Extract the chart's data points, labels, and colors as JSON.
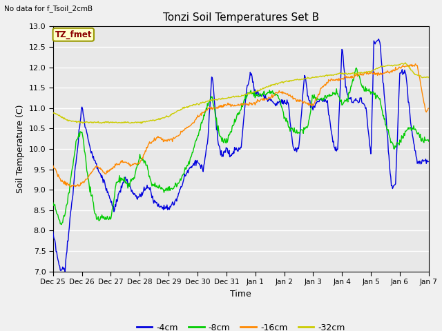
{
  "title": "Tonzi Soil Temperatures Set B",
  "xlabel": "Time",
  "ylabel": "Soil Temperature (C)",
  "top_left_note": "No data for f_Tsoil_2cmB",
  "annotation_label": "TZ_fmet",
  "ylim": [
    7.0,
    13.0
  ],
  "yticks": [
    7.0,
    7.5,
    8.0,
    8.5,
    9.0,
    9.5,
    10.0,
    10.5,
    11.0,
    11.5,
    12.0,
    12.5,
    13.0
  ],
  "colors": {
    "4cm": "#0000dd",
    "8cm": "#00cc00",
    "16cm": "#ff8800",
    "32cm": "#cccc00"
  },
  "legend": [
    "-4cm",
    "-8cm",
    "-16cm",
    "-32cm"
  ],
  "bg_color": "#e8e8e8",
  "fig_bg": "#f0f0f0",
  "xtick_labels": [
    "Dec 25",
    "Dec 26",
    "Dec 27",
    "Dec 28",
    "Dec 29",
    "Dec 30",
    "Dec 31",
    "Jan 1",
    "Jan 2",
    "Jan 3",
    "Jan 4",
    "Jan 5",
    "Jan 6",
    "Jan 7"
  ],
  "key_x4": [
    0,
    0.25,
    0.42,
    1.0,
    1.1,
    1.3,
    1.5,
    1.7,
    1.9,
    2.1,
    2.3,
    2.5,
    2.7,
    2.85,
    3.0,
    3.15,
    3.3,
    3.5,
    3.7,
    3.85,
    4.0,
    4.2,
    4.4,
    4.6,
    4.8,
    5.0,
    5.2,
    5.35,
    5.5,
    5.7,
    5.85,
    6.0,
    6.15,
    6.3,
    6.5,
    6.7,
    6.85,
    7.0,
    7.1,
    7.3,
    7.5,
    7.7,
    7.85,
    8.0,
    8.15,
    8.3,
    8.5,
    8.7,
    8.85,
    9.0,
    9.2,
    9.4,
    9.5,
    9.7,
    9.85,
    10.0,
    10.15,
    10.3,
    10.5,
    10.7,
    10.85,
    11.0,
    11.1,
    11.3,
    11.5,
    11.7,
    11.85,
    12.0,
    12.2,
    12.4,
    12.6,
    12.8,
    13.0
  ],
  "key_y4": [
    7.9,
    7.0,
    7.1,
    11.1,
    10.6,
    10.0,
    9.6,
    9.3,
    8.9,
    8.5,
    8.9,
    9.3,
    9.0,
    8.85,
    8.8,
    9.0,
    9.1,
    8.7,
    8.6,
    8.6,
    8.55,
    8.65,
    9.0,
    9.4,
    9.6,
    9.7,
    9.5,
    10.2,
    11.9,
    10.2,
    9.8,
    10.0,
    9.8,
    10.0,
    10.0,
    11.5,
    11.85,
    11.4,
    11.35,
    11.3,
    11.2,
    11.1,
    11.15,
    11.2,
    11.1,
    10.0,
    10.0,
    11.8,
    11.2,
    11.0,
    11.2,
    11.2,
    11.1,
    10.1,
    10.0,
    12.5,
    11.4,
    11.15,
    11.2,
    11.2,
    10.9,
    9.8,
    12.6,
    12.7,
    11.0,
    9.1,
    9.1,
    11.9,
    11.9,
    10.5,
    9.7,
    9.7,
    9.7
  ],
  "key_x8": [
    0,
    0.3,
    0.5,
    0.8,
    1.0,
    1.2,
    1.5,
    1.8,
    2.0,
    2.2,
    2.4,
    2.6,
    2.8,
    3.0,
    3.2,
    3.4,
    3.6,
    3.8,
    4.0,
    4.3,
    4.6,
    5.0,
    5.3,
    5.5,
    5.7,
    5.85,
    6.0,
    6.2,
    6.5,
    6.8,
    7.0,
    7.2,
    7.5,
    7.8,
    8.0,
    8.2,
    8.5,
    8.8,
    9.0,
    9.2,
    9.5,
    9.8,
    10.0,
    10.2,
    10.5,
    10.7,
    11.0,
    11.3,
    11.5,
    11.8,
    12.0,
    12.3,
    12.5,
    12.8,
    13.0
  ],
  "key_y8": [
    8.7,
    8.1,
    8.7,
    10.2,
    10.5,
    9.3,
    8.3,
    8.3,
    8.3,
    9.2,
    9.3,
    9.1,
    9.3,
    9.8,
    9.7,
    9.15,
    9.1,
    9.0,
    9.0,
    9.1,
    9.5,
    10.3,
    11.0,
    11.3,
    10.5,
    10.2,
    10.2,
    10.5,
    11.0,
    11.4,
    11.3,
    11.3,
    11.4,
    11.3,
    10.8,
    10.5,
    10.4,
    10.5,
    11.3,
    11.2,
    11.3,
    11.4,
    11.1,
    11.2,
    12.0,
    11.5,
    11.4,
    11.2,
    10.6,
    10.0,
    10.2,
    10.5,
    10.5,
    10.2,
    10.2
  ],
  "key_x16": [
    0,
    0.3,
    0.6,
    0.9,
    1.2,
    1.5,
    1.8,
    2.1,
    2.4,
    2.7,
    3.0,
    3.3,
    3.6,
    3.9,
    4.2,
    4.5,
    4.8,
    5.1,
    5.4,
    5.7,
    6.0,
    6.3,
    6.6,
    6.9,
    7.2,
    7.5,
    7.8,
    8.1,
    8.4,
    8.7,
    9.0,
    9.3,
    9.6,
    9.9,
    10.2,
    10.5,
    10.8,
    11.1,
    11.4,
    11.7,
    12.0,
    12.3,
    12.6,
    12.9,
    13.0
  ],
  "key_y16": [
    9.6,
    9.2,
    9.1,
    9.1,
    9.3,
    9.6,
    9.4,
    9.55,
    9.7,
    9.6,
    9.65,
    10.1,
    10.3,
    10.2,
    10.25,
    10.45,
    10.6,
    10.85,
    11.0,
    11.0,
    11.1,
    11.05,
    11.1,
    11.1,
    11.2,
    11.25,
    11.4,
    11.35,
    11.2,
    11.15,
    11.05,
    11.5,
    11.7,
    11.7,
    11.75,
    11.8,
    11.85,
    11.85,
    11.85,
    11.9,
    12.0,
    12.05,
    12.05,
    10.9,
    11.0
  ],
  "key_x32": [
    0,
    0.5,
    1.0,
    1.5,
    2.0,
    2.5,
    3.0,
    3.5,
    4.0,
    4.5,
    5.0,
    5.5,
    6.0,
    6.5,
    7.0,
    7.5,
    8.0,
    8.5,
    9.0,
    9.5,
    10.0,
    10.5,
    11.0,
    11.3,
    11.6,
    11.9,
    12.2,
    12.5,
    12.8,
    13.0
  ],
  "key_y32": [
    10.9,
    10.7,
    10.65,
    10.65,
    10.65,
    10.65,
    10.65,
    10.7,
    10.8,
    11.0,
    11.1,
    11.2,
    11.25,
    11.3,
    11.4,
    11.55,
    11.65,
    11.7,
    11.75,
    11.8,
    11.85,
    11.85,
    11.9,
    12.0,
    12.05,
    12.05,
    12.1,
    11.85,
    11.75,
    11.75
  ]
}
